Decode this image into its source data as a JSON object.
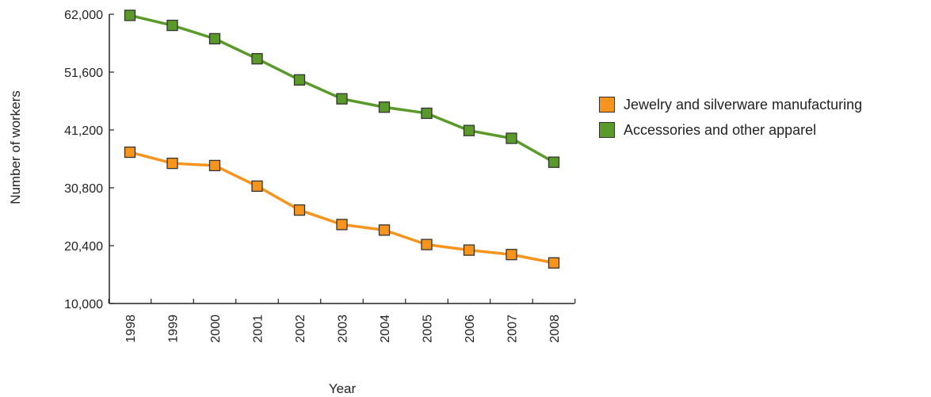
{
  "chart_data": {
    "type": "line",
    "title": "",
    "xlabel": "Year",
    "ylabel": "Number of workers",
    "x": [
      "1998",
      "1999",
      "2000",
      "2001",
      "2002",
      "2003",
      "2004",
      "2005",
      "2006",
      "2007",
      "2008"
    ],
    "ylim": [
      10000,
      62000
    ],
    "yticks": [
      10000,
      20400,
      30800,
      41200,
      51600,
      62000
    ],
    "ytick_labels": [
      "10,000",
      "20,400",
      "30,800",
      "41,200",
      "51,600",
      "62,000"
    ],
    "grid": false,
    "legend_position": "right",
    "series": [
      {
        "name": "Jewelry and silverware manufacturing",
        "color": "#f7941d",
        "values": [
          37200,
          35200,
          34800,
          31100,
          26800,
          24200,
          23200,
          20600,
          19600,
          18800,
          17300
        ]
      },
      {
        "name": "Accessories and other apparel",
        "color": "#5a9a2a",
        "values": [
          61800,
          60000,
          57600,
          54000,
          50200,
          46800,
          45300,
          44200,
          41100,
          39700,
          35400
        ]
      }
    ]
  }
}
